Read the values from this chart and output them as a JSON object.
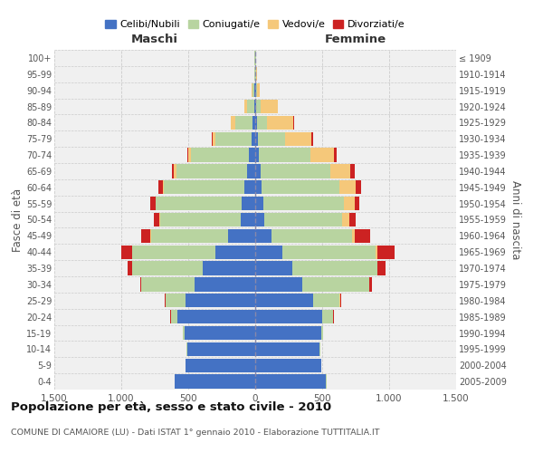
{
  "age_groups": [
    "0-4",
    "5-9",
    "10-14",
    "15-19",
    "20-24",
    "25-29",
    "30-34",
    "35-39",
    "40-44",
    "45-49",
    "50-54",
    "55-59",
    "60-64",
    "65-69",
    "70-74",
    "75-79",
    "80-84",
    "85-89",
    "90-94",
    "95-99",
    "100+"
  ],
  "birth_years": [
    "2005-2009",
    "2000-2004",
    "1995-1999",
    "1990-1994",
    "1985-1989",
    "1980-1984",
    "1975-1979",
    "1970-1974",
    "1965-1969",
    "1960-1964",
    "1955-1959",
    "1950-1954",
    "1945-1949",
    "1940-1944",
    "1935-1939",
    "1930-1934",
    "1925-1929",
    "1920-1924",
    "1915-1919",
    "1910-1914",
    "≤ 1909"
  ],
  "males": {
    "celibi": [
      600,
      520,
      510,
      530,
      580,
      520,
      450,
      390,
      300,
      200,
      110,
      100,
      80,
      60,
      50,
      30,
      20,
      10,
      5,
      3,
      2
    ],
    "coniugati": [
      2,
      3,
      5,
      10,
      50,
      150,
      400,
      530,
      620,
      580,
      600,
      640,
      600,
      530,
      430,
      270,
      130,
      50,
      15,
      5,
      3
    ],
    "vedovi": [
      0,
      0,
      0,
      0,
      1,
      1,
      1,
      2,
      2,
      3,
      5,
      5,
      10,
      15,
      20,
      20,
      30,
      20,
      5,
      2,
      1
    ],
    "divorziati": [
      0,
      0,
      0,
      0,
      2,
      5,
      10,
      30,
      80,
      70,
      40,
      40,
      30,
      20,
      10,
      5,
      0,
      0,
      0,
      0,
      0
    ]
  },
  "females": {
    "nubili": [
      530,
      490,
      480,
      490,
      500,
      430,
      350,
      280,
      200,
      120,
      70,
      60,
      50,
      40,
      30,
      20,
      15,
      10,
      5,
      3,
      2
    ],
    "coniugate": [
      2,
      3,
      5,
      20,
      80,
      200,
      500,
      630,
      700,
      600,
      580,
      600,
      580,
      520,
      380,
      200,
      70,
      30,
      10,
      5,
      3
    ],
    "vedove": [
      0,
      0,
      0,
      0,
      1,
      2,
      3,
      5,
      10,
      20,
      50,
      80,
      120,
      150,
      180,
      200,
      200,
      130,
      20,
      5,
      2
    ],
    "divorziate": [
      0,
      0,
      0,
      0,
      5,
      10,
      20,
      60,
      130,
      120,
      50,
      40,
      40,
      30,
      20,
      10,
      5,
      0,
      0,
      0,
      0
    ]
  },
  "colors": {
    "celibi": "#4472C4",
    "coniugati": "#B8D4A0",
    "vedovi": "#F5C87A",
    "divorziati": "#CC2222"
  },
  "xlim": 1500,
  "title": "Popolazione per età, sesso e stato civile - 2010",
  "subtitle": "COMUNE DI CAMAIORE (LU) - Dati ISTAT 1° gennaio 2010 - Elaborazione TUTTITALIA.IT",
  "xlabel_left": "Maschi",
  "xlabel_right": "Femmine",
  "ylabel_left": "Fasce di età",
  "ylabel_right": "Anni di nascita",
  "legend_labels": [
    "Celibi/Nubili",
    "Coniugati/e",
    "Vedovi/e",
    "Divorziati/e"
  ],
  "background_color": "#ffffff",
  "plot_bg_color": "#f0f0f0",
  "grid_color": "#cccccc"
}
